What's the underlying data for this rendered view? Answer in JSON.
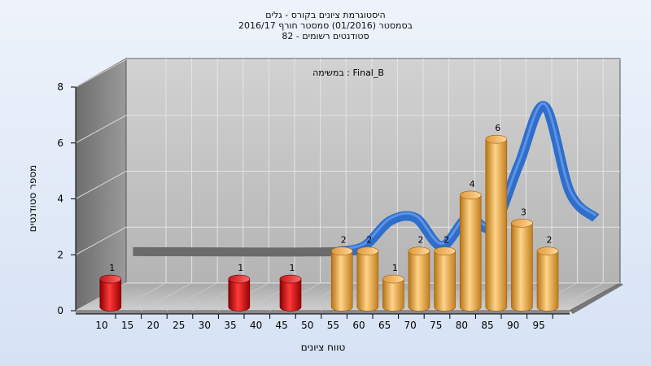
{
  "title_lines": [
    "היסטוגרמת ציונים בקורס - גלים",
    "בסמסטר  (01/2016)  סמסטר חורף 2016/17",
    "סטודנטים רשומים - 82"
  ],
  "chart_data": {
    "type": "bar",
    "annotation": "במשימה : Final_B",
    "xlabel": "טווח ציונים",
    "ylabel": "מספר סטודנטים",
    "x_ticks": [
      "10",
      "15",
      "20",
      "25",
      "30",
      "35",
      "40",
      "45",
      "50",
      "55",
      "60",
      "65",
      "70",
      "75",
      "80",
      "85",
      "90",
      "95"
    ],
    "y_ticks": [
      "0",
      "2",
      "4",
      "6",
      "8"
    ],
    "ylim": [
      0,
      8
    ],
    "bars": [
      {
        "x": 10,
        "value": 1,
        "label": "1",
        "color": "red"
      },
      {
        "x": 35,
        "value": 1,
        "label": "1",
        "color": "red"
      },
      {
        "x": 45,
        "value": 1,
        "label": "1",
        "color": "red"
      },
      {
        "x": 55,
        "value": 2,
        "label": "2",
        "color": "orange"
      },
      {
        "x": 60,
        "value": 2,
        "label": "2",
        "color": "orange"
      },
      {
        "x": 65,
        "value": 1,
        "label": "1",
        "color": "orange"
      },
      {
        "x": 70,
        "value": 2,
        "label": "2",
        "color": "orange"
      },
      {
        "x": 75,
        "value": 2,
        "label": "2",
        "color": "orange"
      },
      {
        "x": 80,
        "value": 4,
        "label": "4",
        "color": "orange"
      },
      {
        "x": 85,
        "value": 6,
        "label": "6",
        "color": "orange"
      },
      {
        "x": 90,
        "value": 3,
        "label": "3",
        "color": "orange"
      },
      {
        "x": 95,
        "value": 2,
        "label": "2",
        "color": "orange"
      }
    ],
    "curve": {
      "x": [
        10,
        50,
        55,
        60,
        65,
        70,
        75,
        80,
        85,
        90,
        95,
        100
      ],
      "y": [
        1.5,
        1.5,
        1.7,
        2.6,
        2.7,
        1.7,
        2.7,
        2.4,
        4.6,
        6.7,
        3.6,
        2.7
      ]
    },
    "colors": {
      "red": "#d80f0f",
      "orange": "#f0a540",
      "curve": "#2f6ecb",
      "flat": "#6b6b6b"
    },
    "grid": true
  }
}
